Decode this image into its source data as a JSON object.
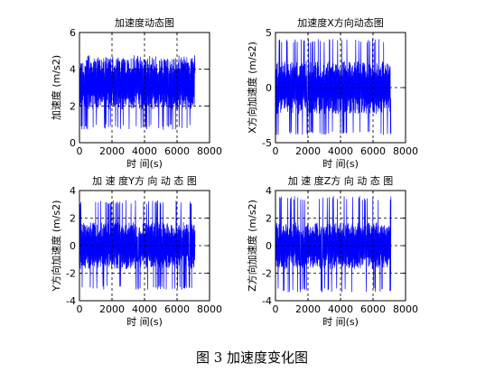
{
  "caption": "图 3  加速度变化图",
  "colors": {
    "series": "#0000ff",
    "axes": "#000000",
    "grid": "#000000"
  },
  "chart_data": [
    {
      "type": "line",
      "title": "加速度动态图",
      "xlabel": "时 间(s)",
      "ylabel": "加速度 (m/s2)",
      "xlim": [
        0,
        8000
      ],
      "ylim": [
        0,
        6
      ],
      "xticks": [
        0,
        2000,
        4000,
        6000,
        8000
      ],
      "yticks": [
        0,
        2,
        4,
        6
      ],
      "grid": "dashed",
      "x_range": [
        0,
        7100
      ],
      "signal": {
        "center": 3.2,
        "amplitude": 1.4,
        "min": 0.7,
        "max": 4.8,
        "samples": 600
      }
    },
    {
      "type": "line",
      "title": "加速度X方向动态图",
      "xlabel": "时 间(s)",
      "ylabel": "X方向加速度 (m/s2)",
      "xlim": [
        0,
        8000
      ],
      "ylim": [
        -5,
        5
      ],
      "xticks": [
        0,
        2000,
        4000,
        6000,
        8000
      ],
      "yticks": [
        -5,
        0,
        5
      ],
      "grid": "dashed",
      "x_range": [
        0,
        7100
      ],
      "signal": {
        "center": 0,
        "amplitude": 2.4,
        "min": -4.3,
        "max": 4.4,
        "samples": 600
      }
    },
    {
      "type": "line",
      "title": "加 速 度Y方 向 动 态 图",
      "xlabel": "时 间(s)",
      "ylabel": "Y方向加速度 (m/s2)",
      "xlim": [
        0,
        8000
      ],
      "ylim": [
        -4,
        4
      ],
      "xticks": [
        0,
        2000,
        4000,
        6000,
        8000
      ],
      "yticks": [
        -4,
        -2,
        0,
        2,
        4
      ],
      "grid": "dashed",
      "x_range": [
        0,
        7100
      ],
      "signal": {
        "center": 0,
        "amplitude": 1.7,
        "min": -3.2,
        "max": 3.3,
        "samples": 600
      }
    },
    {
      "type": "line",
      "title": "加 速 度Z方 向 动 态 图",
      "xlabel": "时 间(s)",
      "ylabel": "Z方向加速度 (m/s2)",
      "xlim": [
        0,
        8000
      ],
      "ylim": [
        -4,
        4
      ],
      "xticks": [
        0,
        2000,
        4000,
        6000,
        8000
      ],
      "yticks": [
        -4,
        -2,
        0,
        2,
        4
      ],
      "grid": "dashed",
      "x_range": [
        0,
        7100
      ],
      "signal": {
        "center": 0,
        "amplitude": 1.7,
        "min": -3.4,
        "max": 3.6,
        "samples": 600
      }
    }
  ]
}
